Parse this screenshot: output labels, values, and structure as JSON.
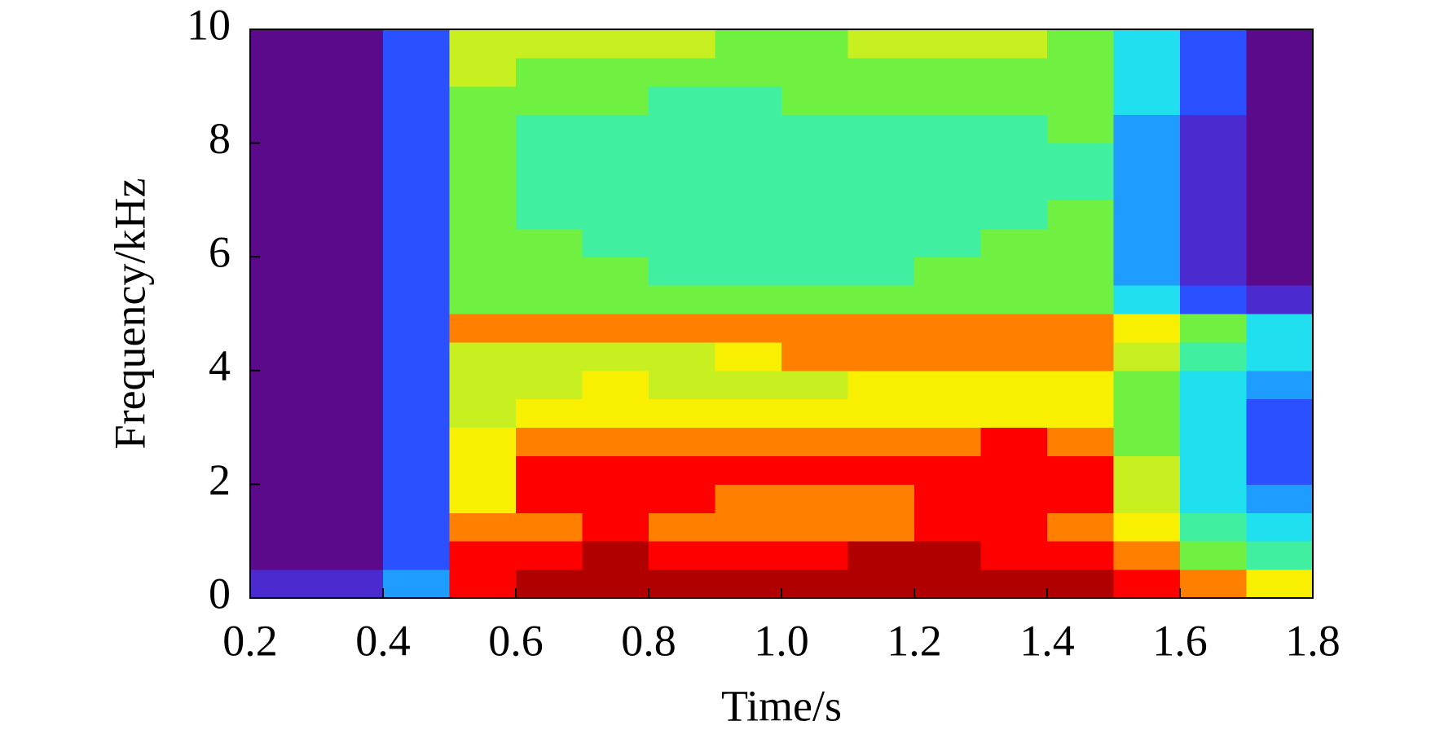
{
  "chart_data": {
    "type": "heatmap",
    "x_label": "Time/s",
    "y_label": "Frequency/kHz",
    "xlim": [
      0.2,
      1.8
    ],
    "xticks": [
      0.2,
      0.4,
      0.6,
      0.8,
      {
        "value": 1,
        "label": "1.0"
      },
      1.2,
      1.4,
      1.6,
      1.8
    ],
    "ylim": [
      0,
      10
    ],
    "yticks": [
      0,
      2,
      4,
      6,
      8,
      10
    ],
    "x_bins": [
      0.2,
      0.3,
      0.4,
      0.5,
      0.6,
      0.7,
      0.8,
      0.9,
      1.0,
      1.1,
      1.2,
      1.3,
      1.4,
      1.5,
      1.6,
      1.7,
      1.8
    ],
    "y_bins": [
      0,
      0.5,
      1,
      1.5,
      2,
      2.5,
      3,
      3.5,
      4,
      4.5,
      5,
      5.5,
      6,
      6.5,
      7,
      7.5,
      8,
      8.5,
      9,
      9.5,
      10
    ],
    "colorscale": [
      "#5a0a8a",
      "#4b2bd0",
      "#2a50ff",
      "#1e9cff",
      "#20e0f0",
      "#40f0a0",
      "#70f040",
      "#c8f020",
      "#f8f000",
      "#ff8000",
      "#ff0000",
      "#b00000"
    ],
    "values": [
      [
        1,
        1,
        3,
        10,
        11,
        11,
        11,
        11,
        11,
        11,
        11,
        11,
        11,
        10,
        9,
        8
      ],
      [
        0,
        0,
        2,
        10,
        10,
        11,
        10,
        10,
        10,
        11,
        11,
        10,
        10,
        9,
        6,
        5
      ],
      [
        0,
        0,
        2,
        9,
        9,
        10,
        9,
        9,
        9,
        9,
        10,
        10,
        9,
        8,
        5,
        4
      ],
      [
        0,
        0,
        2,
        8,
        10,
        10,
        10,
        9,
        9,
        9,
        10,
        10,
        10,
        7,
        4,
        3
      ],
      [
        0,
        0,
        2,
        8,
        10,
        10,
        10,
        10,
        10,
        10,
        10,
        10,
        10,
        7,
        4,
        2
      ],
      [
        0,
        0,
        2,
        8,
        9,
        9,
        9,
        9,
        9,
        9,
        9,
        10,
        9,
        6,
        4,
        2
      ],
      [
        0,
        0,
        2,
        7,
        8,
        8,
        8,
        8,
        8,
        8,
        8,
        8,
        8,
        6,
        4,
        2
      ],
      [
        0,
        0,
        2,
        7,
        7,
        8,
        7,
        7,
        7,
        8,
        8,
        8,
        8,
        6,
        4,
        3
      ],
      [
        0,
        0,
        2,
        7,
        7,
        7,
        7,
        8,
        9,
        9,
        9,
        9,
        9,
        7,
        5,
        4
      ],
      [
        0,
        0,
        2,
        9,
        9,
        9,
        9,
        9,
        9,
        9,
        9,
        9,
        9,
        8,
        6,
        4
      ],
      [
        0,
        0,
        2,
        6,
        6,
        6,
        6,
        6,
        6,
        6,
        6,
        6,
        6,
        4,
        2,
        1
      ],
      [
        0,
        0,
        2,
        6,
        6,
        6,
        5,
        5,
        5,
        5,
        6,
        6,
        6,
        3,
        1,
        0
      ],
      [
        0,
        0,
        2,
        6,
        6,
        5,
        5,
        5,
        5,
        5,
        5,
        6,
        6,
        3,
        1,
        0
      ],
      [
        0,
        0,
        2,
        6,
        5,
        5,
        5,
        5,
        5,
        5,
        5,
        5,
        6,
        3,
        1,
        0
      ],
      [
        0,
        0,
        2,
        6,
        5,
        5,
        5,
        5,
        5,
        5,
        5,
        5,
        5,
        3,
        1,
        0
      ],
      [
        0,
        0,
        2,
        6,
        5,
        5,
        5,
        5,
        5,
        5,
        5,
        5,
        5,
        3,
        1,
        0
      ],
      [
        0,
        0,
        2,
        6,
        5,
        5,
        5,
        5,
        5,
        5,
        5,
        5,
        6,
        3,
        1,
        0
      ],
      [
        0,
        0,
        2,
        6,
        6,
        6,
        5,
        5,
        6,
        6,
        6,
        6,
        6,
        4,
        2,
        0
      ],
      [
        0,
        0,
        2,
        7,
        6,
        6,
        6,
        6,
        6,
        6,
        6,
        6,
        6,
        4,
        2,
        0
      ],
      [
        0,
        0,
        2,
        7,
        7,
        7,
        7,
        6,
        6,
        7,
        7,
        7,
        6,
        4,
        2,
        0
      ]
    ]
  }
}
